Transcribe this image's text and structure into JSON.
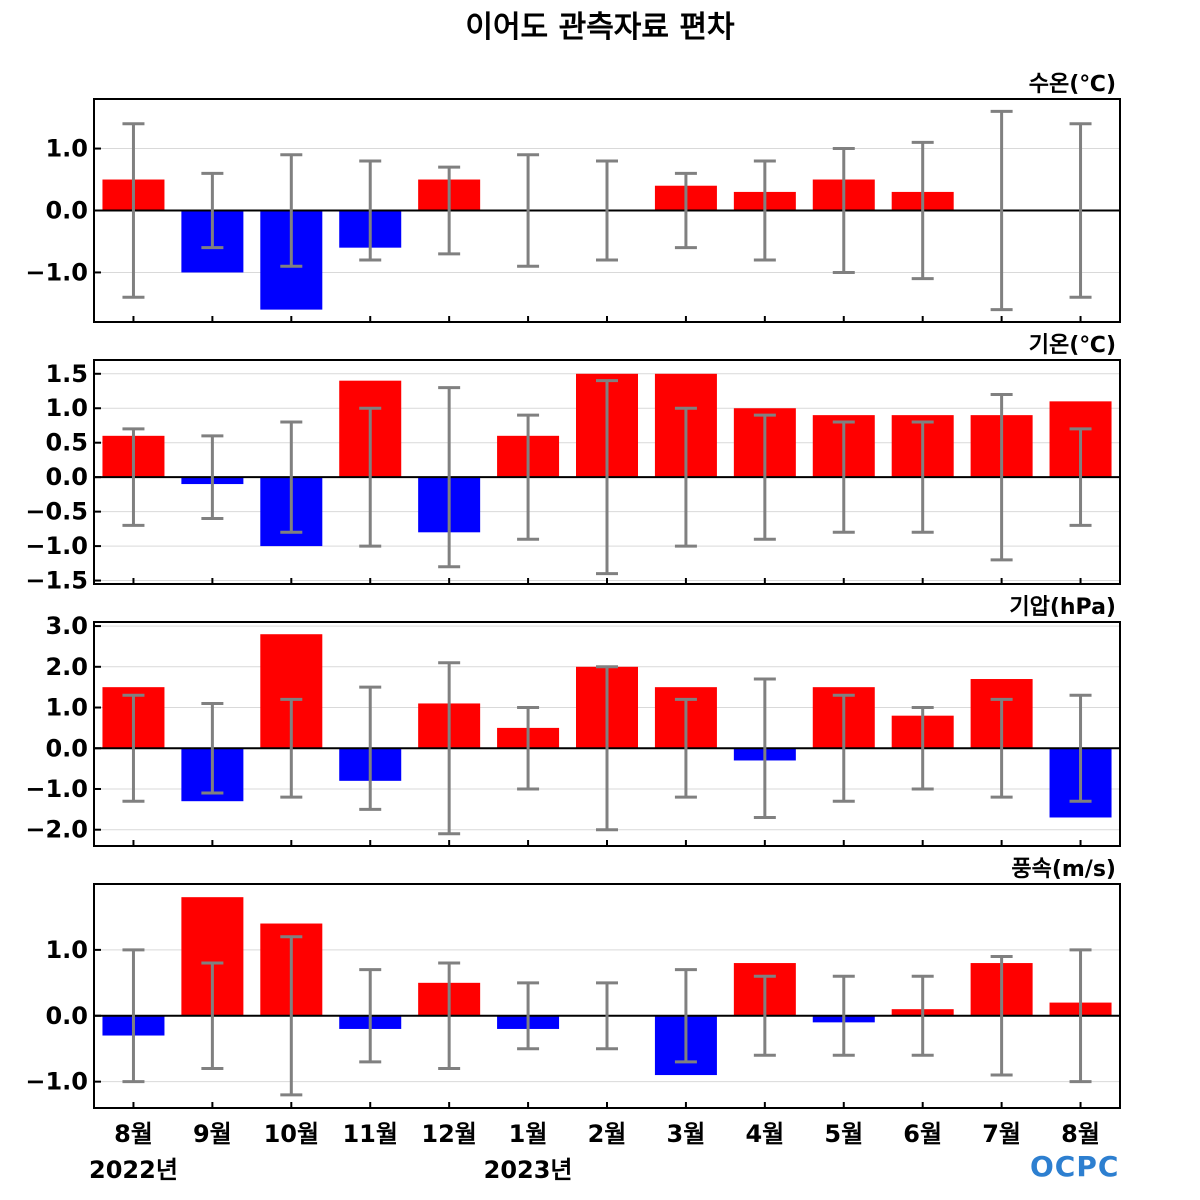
{
  "title": "이어도 관측자료 편차",
  "logo_text": "OCPC",
  "colors": {
    "positive": "#ff0000",
    "negative": "#0000ff",
    "errorbar": "#808080",
    "grid": "#d9d9d9"
  },
  "x_axis": {
    "month_labels": [
      "8월",
      "9월",
      "10월",
      "11월",
      "12월",
      "1월",
      "2월",
      "3월",
      "4월",
      "5월",
      "6월",
      "7월",
      "8월"
    ],
    "year_labels": [
      {
        "text": "2022년",
        "index": 0
      },
      {
        "text": "2023년",
        "index": 5
      }
    ]
  },
  "chart_data": [
    {
      "type": "bar",
      "title": "수온(℃)",
      "ylim": [
        -1.8,
        1.8
      ],
      "yticks": [
        -1.0,
        0.0,
        1.0
      ],
      "ytick_labels": [
        "−1.0",
        "0.0",
        "1.0"
      ],
      "values": [
        0.5,
        -1.0,
        -1.6,
        -0.6,
        0.5,
        0.0,
        0.0,
        0.4,
        0.3,
        0.5,
        0.3,
        0.0,
        0.0
      ],
      "error_range": [
        1.4,
        0.6,
        0.9,
        0.8,
        0.7,
        0.9,
        0.8,
        0.6,
        0.8,
        1.0,
        1.1,
        1.6,
        1.4
      ],
      "grid": true
    },
    {
      "type": "bar",
      "title": "기온(℃)",
      "ylim": [
        -1.55,
        1.7
      ],
      "yticks": [
        -1.5,
        -1.0,
        -0.5,
        0.0,
        0.5,
        1.0,
        1.5
      ],
      "ytick_labels": [
        "−1.5",
        "−1.0",
        "−0.5",
        "0.0",
        "0.5",
        "1.0",
        "1.5"
      ],
      "values": [
        0.6,
        -0.1,
        -1.0,
        1.4,
        -0.8,
        0.6,
        1.5,
        1.5,
        1.0,
        0.9,
        0.9,
        0.9,
        1.1
      ],
      "error_range": [
        0.7,
        0.6,
        0.8,
        1.0,
        1.3,
        0.9,
        1.4,
        1.0,
        0.9,
        0.8,
        0.8,
        1.2,
        0.7
      ],
      "grid": true
    },
    {
      "type": "bar",
      "title": "기압(hPa)",
      "ylim": [
        -2.4,
        3.1
      ],
      "yticks": [
        -2.0,
        -1.0,
        0.0,
        1.0,
        2.0,
        3.0
      ],
      "ytick_labels": [
        "−2.0",
        "−1.0",
        "0.0",
        "1.0",
        "2.0",
        "3.0"
      ],
      "values": [
        1.5,
        -1.3,
        2.8,
        -0.8,
        1.1,
        0.5,
        2.0,
        1.5,
        -0.3,
        1.5,
        0.8,
        1.7,
        -1.7
      ],
      "error_range": [
        1.3,
        1.1,
        1.2,
        1.5,
        2.1,
        1.0,
        2.0,
        1.2,
        1.7,
        1.3,
        1.0,
        1.2,
        1.3
      ],
      "grid": true
    },
    {
      "type": "bar",
      "title": "풍속(m/s)",
      "ylim": [
        -1.4,
        2.0
      ],
      "yticks": [
        -1.0,
        0.0,
        1.0
      ],
      "ytick_labels": [
        "−1.0",
        "0.0",
        "1.0"
      ],
      "values": [
        -0.3,
        1.8,
        1.4,
        -0.2,
        0.5,
        -0.2,
        0.0,
        -0.9,
        0.8,
        -0.1,
        0.1,
        0.8,
        0.2
      ],
      "error_range": [
        1.0,
        0.8,
        1.2,
        0.7,
        0.8,
        0.5,
        0.5,
        0.7,
        0.6,
        0.6,
        0.6,
        0.9,
        1.0
      ],
      "grid": true
    }
  ]
}
